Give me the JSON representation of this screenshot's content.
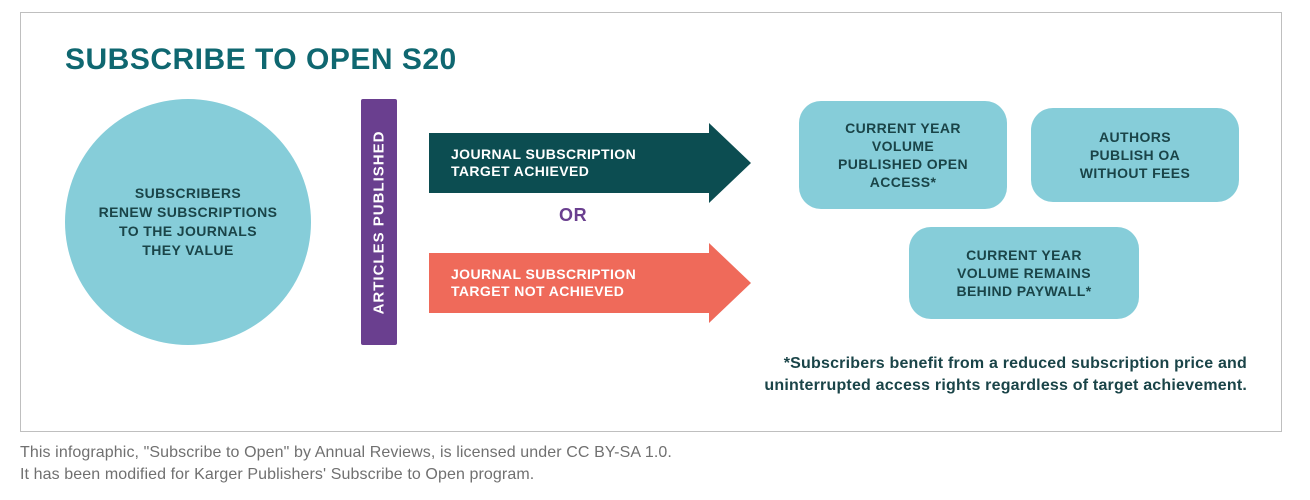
{
  "colors": {
    "teal_dark": "#0f6770",
    "teal_deep": "#0c4d51",
    "cyan": "#86cdd9",
    "purple": "#6a3f8f",
    "coral": "#ef6a5a",
    "text_dark": "#1a4448",
    "grey_text": "#707070",
    "border": "#bfbfbf"
  },
  "title": "SUBSCRIBE TO OPEN S20",
  "circle": {
    "text": "SUBSCRIBERS\nRENEW SUBSCRIPTIONS\nTO THE JOURNALS\nTHEY VALUE"
  },
  "vbar": {
    "text": "ARTICLES PUBLISHED"
  },
  "arrow_top": {
    "text": "JOURNAL SUBSCRIPTION\nTARGET ACHIEVED"
  },
  "or_label": "OR",
  "arrow_bottom": {
    "text": "JOURNAL SUBSCRIPTION\nTARGET NOT ACHIEVED"
  },
  "pill_a": {
    "text": "CURRENT YEAR\nVOLUME\nPUBLISHED OPEN\nACCESS*"
  },
  "pill_b": {
    "text": "AUTHORS\nPUBLISH OA\nWITHOUT FEES"
  },
  "pill_c": {
    "text": "CURRENT YEAR\nVOLUME REMAINS\nBEHIND PAYWALL*"
  },
  "footnote": "*Subscribers benefit from a reduced subscription price and\nuninterrupted access rights regardless of target achievement.",
  "caption1": "This infographic, \"Subscribe to Open\" by Annual Reviews, is licensed under CC BY-SA 1.0.",
  "caption2": "It has been modified for Karger Publishers' Subscribe to Open program."
}
